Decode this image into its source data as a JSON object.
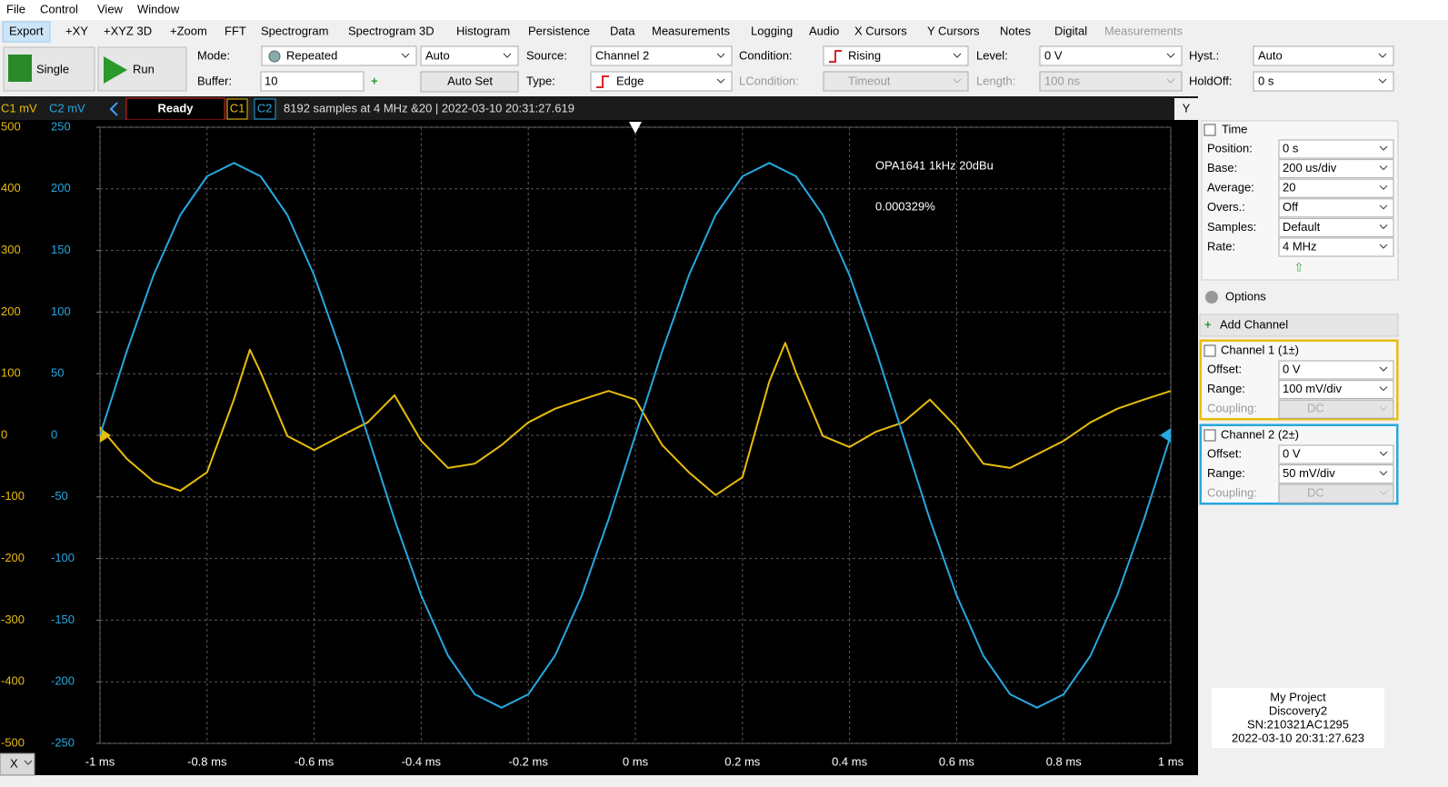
{
  "menu": [
    "File",
    "Control",
    "View",
    "Window"
  ],
  "tabs": [
    "Export",
    "+XY",
    "+XYZ 3D",
    "+Zoom",
    "FFT",
    "Spectrogram",
    "Spectrogram 3D",
    "Histogram",
    "Persistence",
    "Data",
    "Measurements",
    "Logging",
    "Audio",
    "X Cursors",
    "Y Cursors",
    "Notes",
    "Digital",
    "Measurements"
  ],
  "toolbar": {
    "single": "Single",
    "run": "Run",
    "mode_label": "Mode:",
    "mode": "Repeated",
    "mode2": "Auto",
    "buffer_label": "Buffer:",
    "buffer": "10",
    "auto_set": "Auto Set",
    "source_label": "Source:",
    "source": "Channel 2",
    "type_label": "Type:",
    "type": "Edge",
    "condition_label": "Condition:",
    "condition": "Rising",
    "lcondition_label": "LCondition:",
    "lcondition": "Timeout",
    "level_label": "Level:",
    "level": "0 V",
    "length_label": "Length:",
    "length": "100 ns",
    "hyst_label": "Hyst.:",
    "hyst": "Auto",
    "holdoff_label": "HoldOff:",
    "holdoff": "0 s"
  },
  "status": {
    "c1_unit": "C1 mV",
    "c2_unit": "C2 mV",
    "state": "Ready",
    "c1": "C1",
    "c2": "C2",
    "info": "8192 samples at 4 MHz &20 | 2022-03-10 20:31:27.619",
    "axis_button": "Y",
    "x_button": "X"
  },
  "chart_data": {
    "type": "line",
    "annotations": [
      "OPA1641 1kHz 20dBu",
      "0.000329%"
    ],
    "xlim": [
      -1,
      1
    ],
    "xticks": [
      {
        "value": -1,
        "label": "-1 ms"
      },
      {
        "value": -0.8,
        "label": "-0.8 ms"
      },
      {
        "value": -0.6,
        "label": "-0.6 ms"
      },
      {
        "value": -0.4,
        "label": "-0.4 ms"
      },
      {
        "value": -0.2,
        "label": "-0.2 ms"
      },
      {
        "value": 0,
        "label": "0 ms"
      },
      {
        "value": 0.2,
        "label": "0.2 ms"
      },
      {
        "value": 0.4,
        "label": "0.4 ms"
      },
      {
        "value": 0.6,
        "label": "0.6 ms"
      },
      {
        "value": 0.8,
        "label": "0.8 ms"
      },
      {
        "value": 1,
        "label": "1 ms"
      }
    ],
    "ylim": [
      -500,
      500
    ],
    "yticks": [
      -500,
      -400,
      -300,
      -200,
      -100,
      0,
      100,
      200,
      300,
      400,
      500
    ],
    "y2lim": [
      -250,
      250
    ],
    "y2ticks": [
      -250,
      -200,
      -150,
      -100,
      -50,
      0,
      50,
      100,
      150,
      200,
      250
    ],
    "grid": true,
    "series": [
      {
        "name": "C1",
        "color": "#e8bd0c",
        "x": [
          -1,
          -0.95,
          -0.9,
          -0.85,
          -0.8,
          -0.75,
          -0.72,
          -0.7,
          -0.65,
          -0.6,
          -0.55,
          -0.5,
          -0.45,
          -0.4,
          -0.35,
          -0.3,
          -0.25,
          -0.2,
          -0.15,
          -0.1,
          -0.05,
          0,
          0.05,
          0.1,
          0.15,
          0.2,
          0.25,
          0.28,
          0.3,
          0.35,
          0.4,
          0.45,
          0.5,
          0.55,
          0.6,
          0.65,
          0.7,
          0.75,
          0.8,
          0.85,
          0.9,
          0.95,
          1
        ],
        "values": [
          13,
          -38,
          -75,
          -90,
          -60,
          58,
          139,
          102,
          -1,
          -24,
          -1,
          21,
          65,
          -9,
          -53,
          -46,
          -16,
          21,
          43,
          58,
          72,
          58,
          -16,
          -60,
          -97,
          -68,
          87,
          150,
          102,
          -1,
          -19,
          6,
          21,
          58,
          13,
          -46,
          -53,
          -31,
          -9,
          21,
          43,
          58,
          72
        ]
      },
      {
        "name": "C2",
        "color": "#27a8e0",
        "axis": "y2",
        "x": [
          -1,
          -0.95,
          -0.9,
          -0.85,
          -0.8,
          -0.75,
          -0.7,
          -0.65,
          -0.6,
          -0.55,
          -0.5,
          -0.45,
          -0.4,
          -0.35,
          -0.3,
          -0.25,
          -0.2,
          -0.15,
          -0.1,
          -0.05,
          0,
          0.05,
          0.1,
          0.15,
          0.2,
          0.25,
          0.3,
          0.35,
          0.4,
          0.45,
          0.5,
          0.55,
          0.6,
          0.65,
          0.7,
          0.75,
          0.8,
          0.85,
          0.9,
          0.95,
          1
        ],
        "values": [
          0,
          68.3,
          129.9,
          178.8,
          210.2,
          221,
          210.2,
          178.8,
          129.9,
          68.3,
          0,
          -68.3,
          -129.9,
          -178.8,
          -210.2,
          -221,
          -210.2,
          -178.8,
          -129.9,
          -68.3,
          0,
          68.3,
          129.9,
          178.8,
          210.2,
          221,
          210.2,
          178.8,
          129.9,
          68.3,
          0,
          -68.3,
          -129.9,
          -178.8,
          -210.2,
          -221,
          -210.2,
          -178.8,
          -129.9,
          -68.3,
          0
        ]
      }
    ]
  },
  "panel": {
    "time": {
      "title": "Time",
      "rows": [
        [
          "Position:",
          "0 s"
        ],
        [
          "Base:",
          "200 us/div"
        ],
        [
          "Average:",
          "20"
        ],
        [
          "Overs.:",
          "Off"
        ],
        [
          "Samples:",
          "Default"
        ],
        [
          "Rate:",
          "4 MHz"
        ]
      ]
    },
    "options": "Options",
    "add_channel": "Add Channel",
    "channels": [
      {
        "title": "Channel 1 (1±)",
        "rows": [
          [
            "Offset:",
            "0 V"
          ],
          [
            "Range:",
            "100 mV/div"
          ],
          [
            "Coupling:",
            "DC"
          ]
        ]
      },
      {
        "title": "Channel 2 (2±)",
        "rows": [
          [
            "Offset:",
            "0 V"
          ],
          [
            "Range:",
            "50 mV/div"
          ],
          [
            "Coupling:",
            "DC"
          ]
        ]
      }
    ]
  },
  "device": [
    "My Project",
    "Discovery2",
    "SN:210321AC1295",
    "2022-03-10 20:31:27.623"
  ]
}
